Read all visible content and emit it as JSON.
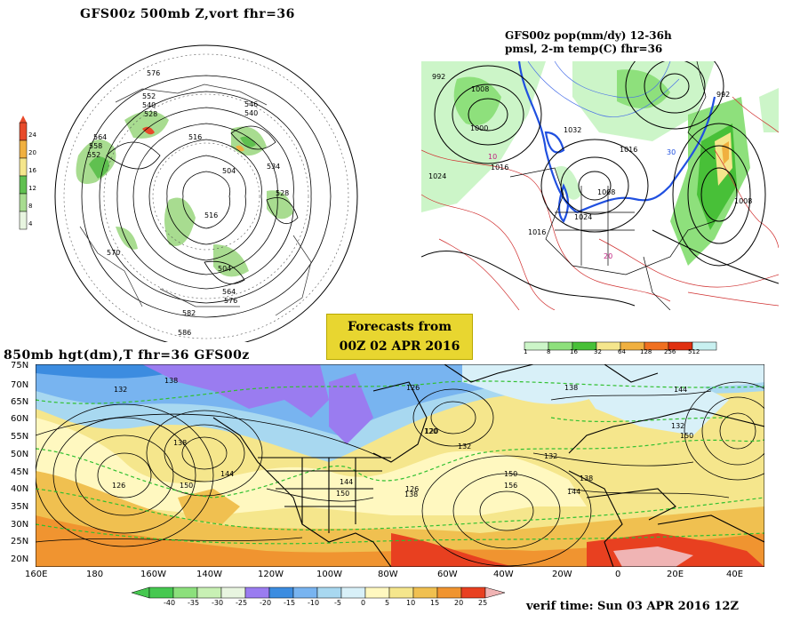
{
  "panels": {
    "polar": {
      "title": "GFS00z   500mb  Z,vort    fhr=36",
      "contour_labels": [
        "576",
        "552",
        "540",
        "528",
        "516",
        "504",
        "564",
        "558",
        "552",
        "546",
        "540",
        "534",
        "528",
        "516",
        "504",
        "564",
        "570",
        "576",
        "582",
        "586"
      ],
      "colorbar": {
        "ticks": [
          "24",
          "20",
          "16",
          "12",
          "8",
          "4"
        ],
        "colors": [
          "#e8f5e0",
          "#a8dc90",
          "#60c050",
          "#f5e68c",
          "#f0b040",
          "#e84a2a"
        ]
      }
    },
    "precip": {
      "title_line1": "GFS00z pop(mm/dy) 12-36h",
      "title_line2": "pmsl, 2-m temp(C)  fhr=36",
      "contour_labels": [
        "992",
        "1008",
        "1000",
        "1016",
        "1024",
        "1032",
        "1008",
        "1016",
        "992",
        "1008",
        "1016",
        "1024",
        "10",
        "20",
        "30"
      ],
      "colorbar": {
        "ticks": [
          "1",
          "8",
          "16",
          "32",
          "64",
          "128",
          "256",
          "512"
        ],
        "colors": [
          "#ccf5c8",
          "#8ee07c",
          "#48c038",
          "#f5e68c",
          "#f0b040",
          "#f07020",
          "#e03010",
          "#c8f0f0"
        ]
      }
    },
    "banner": {
      "line1": "Forecasts from",
      "line2": "00Z 02 APR 2016"
    },
    "t850": {
      "title": "850mb hgt(dm),T  fhr=36 GFS00z",
      "lat_labels": [
        "75N",
        "70N",
        "65N",
        "60N",
        "55N",
        "50N",
        "45N",
        "40N",
        "35N",
        "30N",
        "25N",
        "20N"
      ],
      "lon_labels": [
        "160E",
        "180",
        "160W",
        "140W",
        "120W",
        "100W",
        "80W",
        "60W",
        "40W",
        "20W",
        "0",
        "20E",
        "40E"
      ],
      "contour_labels": [
        "132",
        "138",
        "144",
        "138",
        "126",
        "120",
        "126",
        "150",
        "144",
        "138",
        "132",
        "150",
        "156",
        "144",
        "150",
        "138",
        "132",
        "144",
        "138",
        "150",
        "126",
        "120",
        "132"
      ],
      "colorbar": {
        "ticks": [
          "-40",
          "-35",
          "-30",
          "-25",
          "-20",
          "-15",
          "-10",
          "-5",
          "0",
          "5",
          "10",
          "15",
          "20",
          "25"
        ],
        "colors": [
          "#46c850",
          "#8ce07c",
          "#c8f0b4",
          "#e8f5e0",
          "#9a7cf0",
          "#3c8ce0",
          "#78b4f0",
          "#a8d8f0",
          "#d8f0f8",
          "#fff8c0",
          "#f5e68c",
          "#f0c050",
          "#f09430",
          "#e84020",
          "#f0b4b4"
        ]
      },
      "verif": "verif time: Sun 03 APR 2016 12Z"
    }
  }
}
